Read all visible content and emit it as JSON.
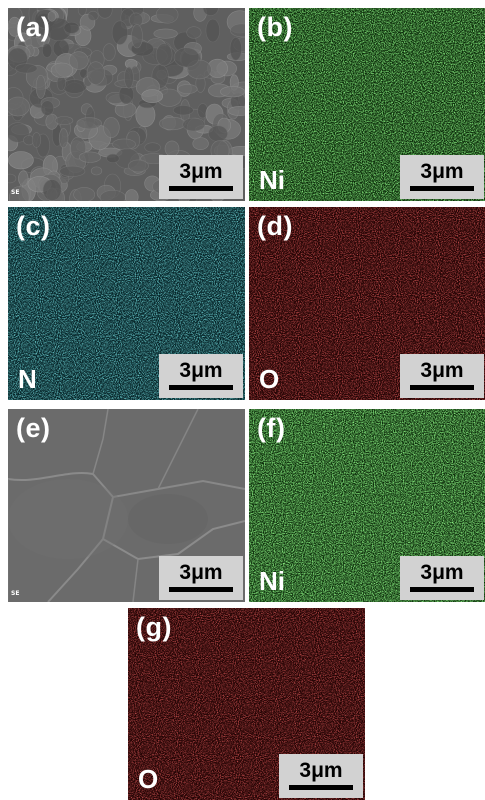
{
  "panels": [
    {
      "id": "a",
      "label": "(a)",
      "kind": "SE image",
      "element": "",
      "detector": "SE",
      "scale": "3μm",
      "color": "#6e6e6e"
    },
    {
      "id": "b",
      "label": "(b)",
      "kind": "EDS map",
      "element": "Ni",
      "scale": "3μm",
      "color": "#3fd23a"
    },
    {
      "id": "c",
      "label": "(c)",
      "kind": "EDS map",
      "element": "N",
      "scale": "3μm",
      "color": "#35c6cf"
    },
    {
      "id": "d",
      "label": "(d)",
      "kind": "EDS map",
      "element": "O",
      "scale": "3μm",
      "color": "#d21e1e"
    },
    {
      "id": "e",
      "label": "(e)",
      "kind": "SE image",
      "element": "",
      "detector": "SE",
      "scale": "3μm",
      "color": "#6c6c6c"
    },
    {
      "id": "f",
      "label": "(f)",
      "kind": "EDS map",
      "element": "Ni",
      "scale": "3μm",
      "color": "#3fd23a"
    },
    {
      "id": "g",
      "label": "(g)",
      "kind": "EDS map",
      "element": "O",
      "scale": "3μm",
      "color": "#d21e1e"
    }
  ]
}
